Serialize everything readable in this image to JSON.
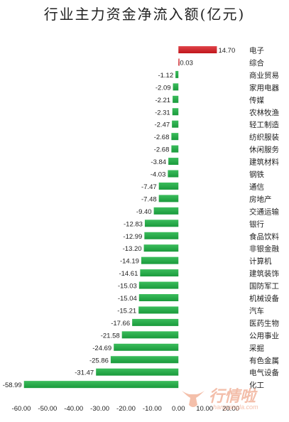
{
  "chart_data": {
    "type": "bar",
    "orientation": "horizontal",
    "title": "行业主力资金净流入额(亿元)",
    "categories": [
      "电子",
      "综合",
      "商业贸易",
      "家用电器",
      "传媒",
      "农林牧渔",
      "轻工制造",
      "纺织服装",
      "休闲服务",
      "建筑材料",
      "钢铁",
      "通信",
      "房地产",
      "交通运输",
      "银行",
      "食品饮料",
      "非银金融",
      "计算机",
      "建筑装饰",
      "国防军工",
      "机械设备",
      "汽车",
      "医药生物",
      "公用事业",
      "采掘",
      "有色金属",
      "电气设备",
      "化工"
    ],
    "values": [
      14.7,
      0.03,
      -1.12,
      -2.09,
      -2.21,
      -2.31,
      -2.47,
      -2.68,
      -2.68,
      -3.84,
      -4.03,
      -7.47,
      -7.48,
      -9.4,
      -12.83,
      -12.99,
      -13.2,
      -14.19,
      -14.61,
      -15.03,
      -15.04,
      -15.21,
      -17.66,
      -21.58,
      -24.69,
      -25.86,
      -31.47,
      -58.99
    ],
    "value_labels": [
      "14.70",
      "0.03",
      "-1.12",
      "-2.09",
      "-2.21",
      "-2.31",
      "-2.47",
      "-2.68",
      "-2.68",
      "-3.84",
      "-4.03",
      "-7.47",
      "-7.48",
      "-9.40",
      "-12.83",
      "-12.99",
      "-13.20",
      "-14.19",
      "-14.61",
      "-15.03",
      "-15.04",
      "-15.21",
      "-17.66",
      "-21.58",
      "-24.69",
      "-25.86",
      "-31.47",
      "-58.99"
    ],
    "xlim": [
      -60,
      20
    ],
    "xticks": [
      "-60.00",
      "-50.00",
      "-40.00",
      "-30.00",
      "-20.00",
      "-10.00",
      "0.00",
      "10.00",
      "20.00"
    ],
    "xtick_values": [
      -60,
      -50,
      -40,
      -30,
      -20,
      -10,
      0,
      10,
      20
    ],
    "grid": false,
    "colors": {
      "positive": "#c0151b",
      "negative": "#1a9a3c"
    }
  },
  "watermark": {
    "text": "行情啦",
    "sub": "hangqingla.com"
  }
}
